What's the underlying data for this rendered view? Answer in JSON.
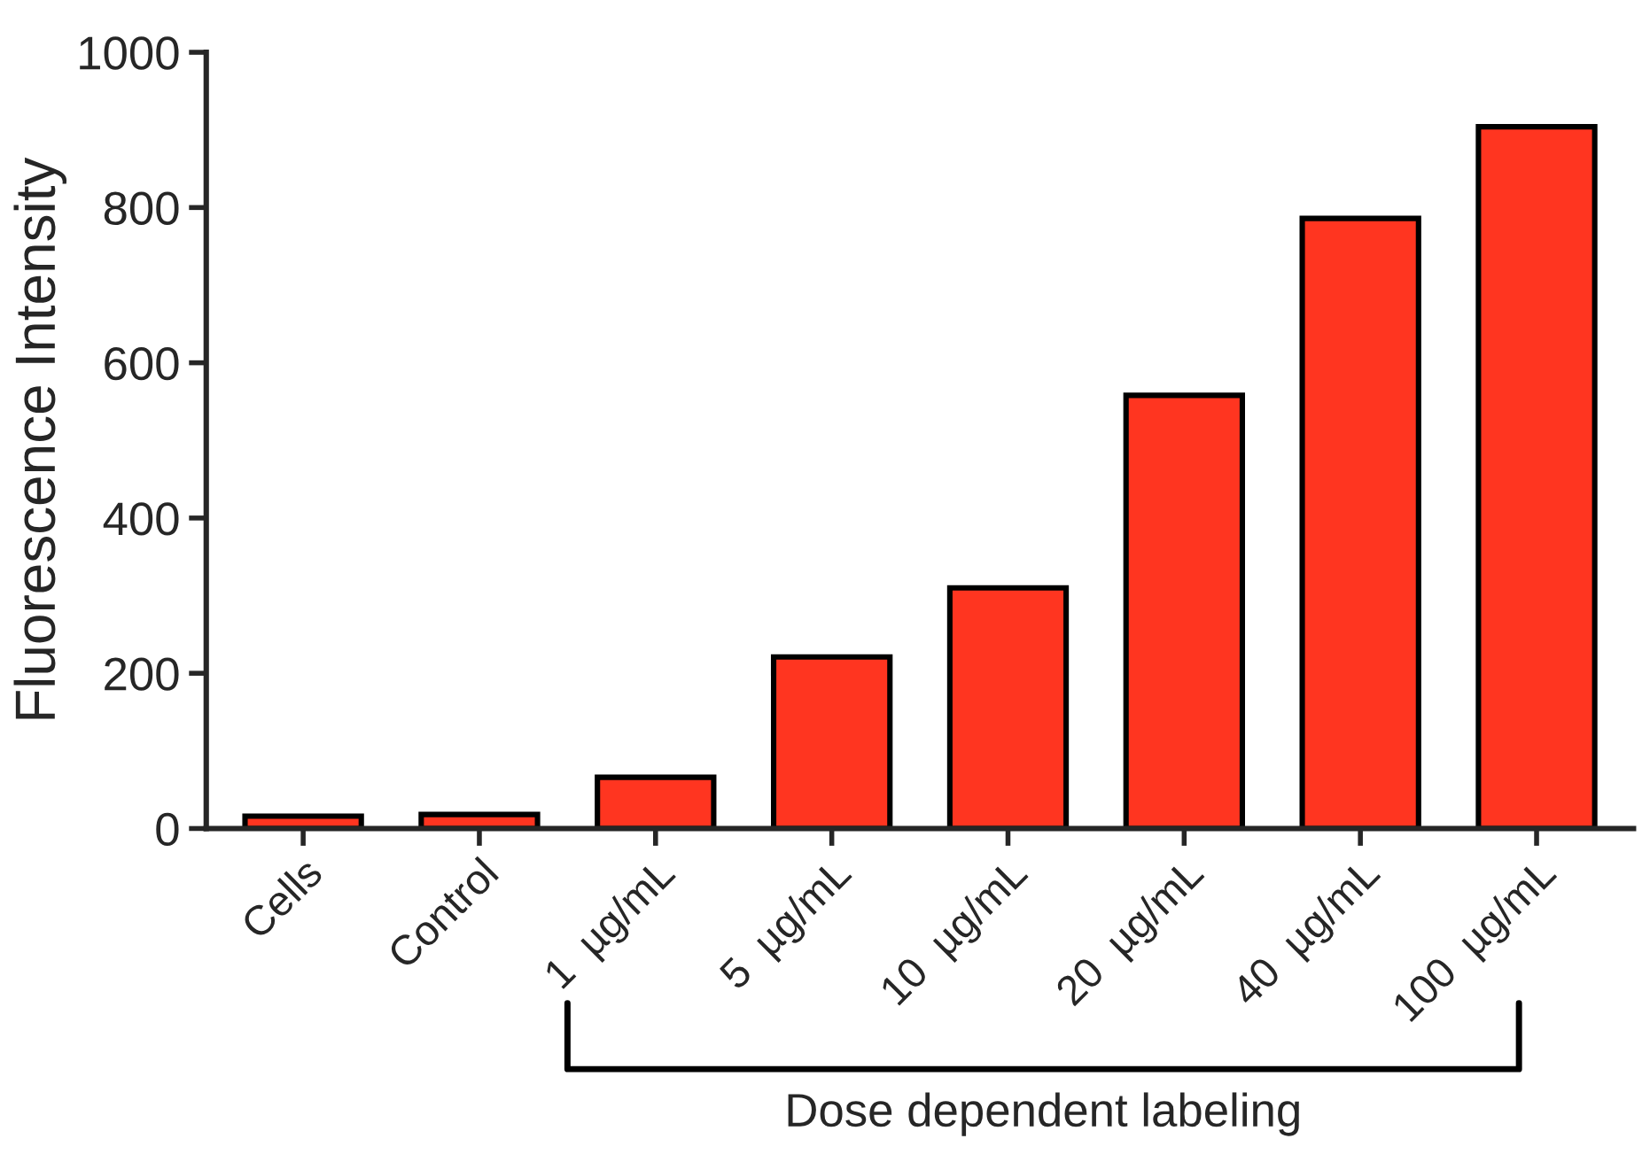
{
  "chart_data": {
    "type": "bar",
    "ylabel": "Fluorescence Intensity",
    "categories": [
      "Cells",
      "Control",
      "1  µg/mL",
      "5  µg/mL",
      "10  µg/mL",
      "20  µg/mL",
      "40  µg/mL",
      "100  µg/mL"
    ],
    "values": [
      16,
      18,
      66,
      221,
      310,
      558,
      786,
      904
    ],
    "color": "#ff3520",
    "ylim": [
      0,
      1000
    ],
    "yticks": [
      0,
      200,
      400,
      600,
      800,
      1000
    ],
    "grid": false,
    "annotations": [
      "Dose dependent labeling"
    ]
  }
}
